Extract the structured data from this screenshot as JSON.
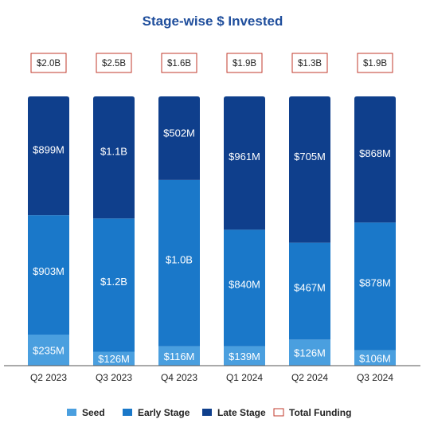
{
  "chart_data": {
    "type": "bar",
    "stacked": true,
    "title": "Stage-wise $ Invested",
    "categories": [
      "Q2 2023",
      "Q3 2023",
      "Q4 2023",
      "Q1 2024",
      "Q2 2024",
      "Q3 2024"
    ],
    "series": [
      {
        "name": "Seed",
        "color": "#4a9fdf",
        "values": [
          235,
          126,
          116,
          139,
          126,
          106
        ],
        "labels": [
          "$235M",
          "$126M",
          "$116M",
          "$139M",
          "$126M",
          "$106M"
        ]
      },
      {
        "name": "Early Stage",
        "color": "#1a78c9",
        "values": [
          903,
          1200,
          1000,
          840,
          467,
          878
        ],
        "labels": [
          "$903M",
          "$1.2B",
          "$1.0B",
          "$840M",
          "$467M",
          "$878M"
        ]
      },
      {
        "name": "Late Stage",
        "color": "#0f3f8c",
        "values": [
          899,
          1100,
          502,
          961,
          705,
          868
        ],
        "labels": [
          "$899M",
          "$1.1B",
          "$502M",
          "$961M",
          "$705M",
          "$868M"
        ]
      }
    ],
    "totals": {
      "name": "Total Funding",
      "border_color": "#c0392b",
      "values": [
        2000,
        2500,
        1600,
        1900,
        1300,
        1900
      ],
      "labels": [
        "$2.0B",
        "$2.5B",
        "$1.6B",
        "$1.9B",
        "$1.3B",
        "$1.9B"
      ]
    },
    "normalized_to_full_height": true,
    "title_color": "#1f4e9c",
    "legend_position": "bottom",
    "grid": false
  }
}
